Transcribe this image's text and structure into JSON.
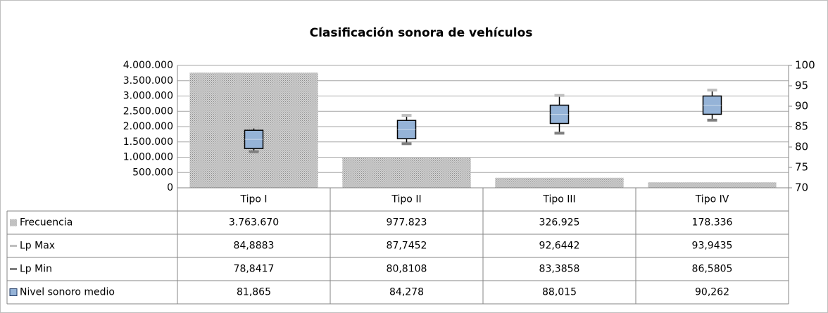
{
  "chart_data": {
    "type": "bar",
    "title": "Clasificación sonora de vehículos",
    "categories": [
      "Tipo I",
      "Tipo II",
      "Tipo III",
      "Tipo IV"
    ],
    "ylim": [
      0,
      4000000
    ],
    "yticks": [
      0,
      {
        "value": 500000,
        "label": "500.000"
      },
      {
        "value": 1000000,
        "label": "1.000.000"
      },
      {
        "value": 1500000,
        "label": "1.500.000"
      },
      {
        "value": 2000000,
        "label": "2.000.000"
      },
      {
        "value": 2500000,
        "label": "2.500.000"
      },
      {
        "value": 3000000,
        "label": "3.000.000"
      },
      {
        "value": 3500000,
        "label": "3.500.000"
      },
      {
        "value": 4000000,
        "label": "4.000.000"
      }
    ],
    "y2lim": [
      70,
      100
    ],
    "y2ticks": [
      70,
      75,
      80,
      85,
      90,
      95,
      100
    ],
    "grid": true,
    "series": [
      {
        "name": "Frecuencia",
        "type": "bar",
        "color": "#a6a6a6",
        "values": [
          3763670,
          977823,
          326925,
          178336
        ],
        "value_labels": [
          "3.763.670",
          "977.823",
          "326.925",
          "178.336"
        ]
      },
      {
        "name": "Lp Max",
        "type": "dash",
        "axis": "y2",
        "color": "#bfbfbf",
        "values": [
          84.8883,
          87.7452,
          92.6442,
          93.9435
        ],
        "value_labels": [
          "84,8883",
          "87,7452",
          "92,6442",
          "93,9435"
        ]
      },
      {
        "name": "Lp Min",
        "type": "dash",
        "axis": "y2",
        "color": "#7f7f7f",
        "values": [
          78.8417,
          80.8108,
          83.3858,
          86.5805
        ],
        "value_labels": [
          "78,8417",
          "80,8108",
          "83,3858",
          "86,5805"
        ]
      },
      {
        "name": "Nivel sonoro medio",
        "type": "box",
        "axis": "y2",
        "color": "#95b3d7",
        "values": [
          81.865,
          84.278,
          88.015,
          90.262
        ],
        "value_labels": [
          "81,865",
          "84,278",
          "88,015",
          "90,262"
        ]
      }
    ]
  }
}
